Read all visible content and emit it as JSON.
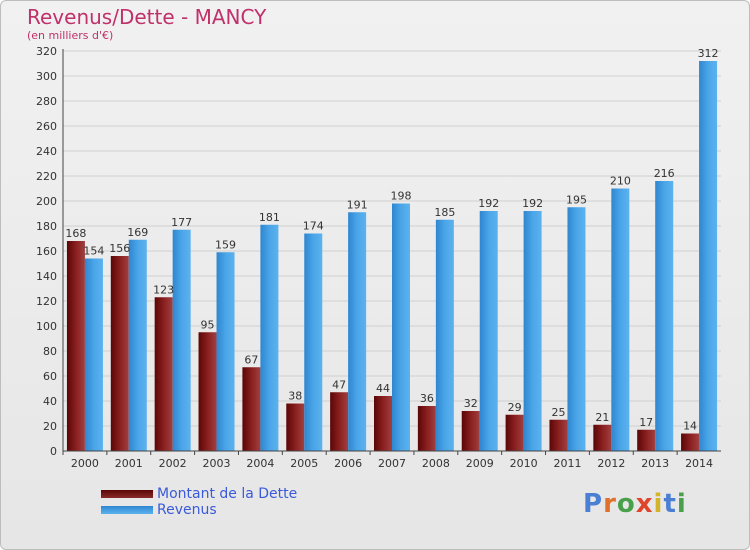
{
  "title": "Revenus/Dette - MANCY",
  "subtitle": "(en milliers d'€)",
  "logo_text": "Proxiti",
  "colors": {
    "dette": "#7a1414",
    "revenus": "#3f9be0",
    "title": "#c0306a",
    "legend_text": "#3a5ad9"
  },
  "chart_data": {
    "type": "bar",
    "title": "Revenus/Dette - MANCY",
    "subtitle": "(en milliers d'€)",
    "categories": [
      "2000",
      "2001",
      "2002",
      "2003",
      "2004",
      "2005",
      "2006",
      "2007",
      "2008",
      "2009",
      "2010",
      "2011",
      "2012",
      "2013",
      "2014"
    ],
    "series": [
      {
        "name": "Montant de la Dette",
        "values": [
          168,
          156,
          123,
          95,
          67,
          38,
          47,
          44,
          36,
          32,
          29,
          25,
          21,
          17,
          14
        ]
      },
      {
        "name": "Revenus",
        "values": [
          154,
          169,
          177,
          159,
          181,
          174,
          191,
          198,
          185,
          192,
          192,
          195,
          210,
          216,
          312
        ]
      }
    ],
    "ylim": [
      0,
      320
    ],
    "yticks": [
      0,
      20,
      40,
      60,
      80,
      100,
      120,
      140,
      160,
      180,
      200,
      220,
      240,
      260,
      280,
      300,
      320
    ],
    "grid": true,
    "legend_position": "bottom-left"
  }
}
